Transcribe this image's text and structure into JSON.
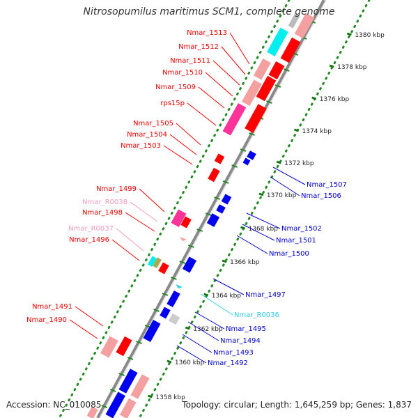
{
  "title": "Nitrosopumilus maritimus SCM1, complete genome",
  "accession": "Accession: NC_010085",
  "topology": "Topology: circular; Length: 1,645,259 bp; Genes: 1,837",
  "colors": {
    "forward_gene": "#ff0000",
    "reverse_gene": "#0000ee",
    "rna_gene": "#33ccee",
    "pseudogene": "#cc88cc",
    "highlight": "#ff3399",
    "backbone": "#888888",
    "ruler_dots": "#228822"
  },
  "ruler_labels": [
    "1380 kbp",
    "1378 kbp",
    "1376 kbp",
    "1374 kbp",
    "1372 kbp",
    "1370 kbp",
    "1368 kbp",
    "1366 kbp",
    "1364 kbp",
    "1362 kbp",
    "1360 kbp",
    "1358 kbp"
  ],
  "gene_labels_forward": [
    {
      "text": "Nmar_1513",
      "color": "red"
    },
    {
      "text": "Nmar_1512",
      "color": "red"
    },
    {
      "text": "Nmar_1511",
      "color": "red"
    },
    {
      "text": "Nmar_1510",
      "color": "red"
    },
    {
      "text": "Nmar_1509",
      "color": "red"
    },
    {
      "text": "rps15p",
      "color": "red"
    },
    {
      "text": "Nmar_1505",
      "color": "red"
    },
    {
      "text": "Nmar_1504",
      "color": "red"
    },
    {
      "text": "Nmar_1503",
      "color": "red"
    },
    {
      "text": "Nmar_1499",
      "color": "red"
    },
    {
      "text": "Nmar_R0038",
      "color": "pink"
    },
    {
      "text": "Nmar_1498",
      "color": "red"
    },
    {
      "text": "Nmar_R0037",
      "color": "pink"
    },
    {
      "text": "Nmar_1496",
      "color": "red"
    },
    {
      "text": "Nmar_1491",
      "color": "red"
    },
    {
      "text": "Nmar_1490",
      "color": "red"
    }
  ],
  "gene_labels_reverse": [
    {
      "text": "Nmar_1507",
      "color": "blue"
    },
    {
      "text": "Nmar_1506",
      "color": "blue"
    },
    {
      "text": "Nmar_1502",
      "color": "blue"
    },
    {
      "text": "Nmar_1501",
      "color": "blue"
    },
    {
      "text": "Nmar_1500",
      "color": "blue"
    },
    {
      "text": "Nmar_1497",
      "color": "blue"
    },
    {
      "text": "Nmar_R0036",
      "color": "cyan"
    },
    {
      "text": "Nmar_1495",
      "color": "blue"
    },
    {
      "text": "Nmar_1494",
      "color": "blue"
    },
    {
      "text": "Nmar_1493",
      "color": "blue"
    },
    {
      "text": "Nmar_1492",
      "color": "blue"
    }
  ]
}
